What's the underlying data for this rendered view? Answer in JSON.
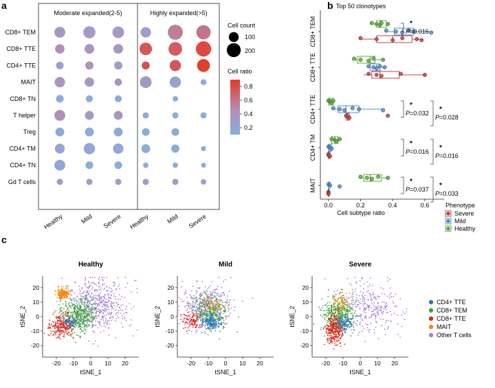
{
  "panels": {
    "a": "a",
    "b": "b",
    "c": "c"
  },
  "colors": {
    "severe": "#c8413b",
    "mild": "#4a90d9",
    "healthy": "#59b02f",
    "ratio_low": "#88aee0",
    "ratio_mid": "#b28fb8",
    "ratio_high": "#e63a26",
    "cd4_tte": "#2b7bb9",
    "cd8_tem": "#3ca33a",
    "cd8_tte": "#e0261c",
    "mait": "#f08a0c",
    "other_t": "#a97de0"
  },
  "chart_data": [
    {
      "type": "scatter",
      "subtype": "dot-plot",
      "panel": "a",
      "group_titles": [
        "Moderate expanded(2-5)",
        "Highly expanded(>5)"
      ],
      "categories": [
        "Healthy",
        "Mild",
        "Severe",
        "Healthy",
        "Mild",
        "Severe"
      ],
      "rows": [
        "CD8+ TEM",
        "CD8+ TTE",
        "CD4+ TTE",
        "MAIT",
        "CD8+ TN",
        "T helper",
        "Treg",
        "CD4+ TM",
        "CD4+ TN",
        "Gd T cells"
      ],
      "cell_count": [
        [
          120,
          150,
          140,
          110,
          230,
          210
        ],
        [
          90,
          95,
          95,
          160,
          190,
          240
        ],
        [
          60,
          70,
          70,
          65,
          130,
          170
        ],
        [
          110,
          90,
          55,
          140,
          130,
          35
        ],
        [
          60,
          50,
          50,
          0,
          30,
          0
        ],
        [
          120,
          80,
          80,
          40,
          40,
          40
        ],
        [
          80,
          80,
          80,
          60,
          60,
          0
        ],
        [
          100,
          130,
          110,
          80,
          70,
          25
        ],
        [
          120,
          60,
          60,
          30,
          30,
          25
        ],
        [
          40,
          40,
          40,
          40,
          40,
          30
        ]
      ],
      "cell_ratio": [
        [
          0.35,
          0.33,
          0.33,
          0.28,
          0.55,
          0.6
        ],
        [
          0.45,
          0.4,
          0.38,
          0.75,
          0.72,
          0.82
        ],
        [
          0.3,
          0.4,
          0.28,
          0.8,
          0.75,
          0.88
        ],
        [
          0.4,
          0.35,
          0.4,
          0.35,
          0.22,
          0.12
        ],
        [
          0.12,
          0.12,
          0.12,
          0,
          0.12,
          0
        ],
        [
          0.45,
          0.35,
          0.4,
          0.12,
          0.12,
          0.12
        ],
        [
          0.15,
          0.15,
          0.15,
          0.12,
          0.12,
          0
        ],
        [
          0.2,
          0.18,
          0.18,
          0.12,
          0.12,
          0.12
        ],
        [
          0.18,
          0.12,
          0.12,
          0.12,
          0.12,
          0.12
        ],
        [
          0.3,
          0.3,
          0.3,
          0.25,
          0.35,
          0.25
        ]
      ],
      "size_legend": {
        "title": "Cell count",
        "labels": [
          "100",
          "200"
        ],
        "values": [
          100,
          200
        ]
      },
      "color_legend": {
        "title": "Cell ratio",
        "ticks": [
          "0.8",
          "0.6",
          "0.4",
          "0.2"
        ],
        "values": [
          0.8,
          0.6,
          0.4,
          0.2
        ],
        "range": [
          0.1,
          0.9
        ]
      }
    },
    {
      "type": "box",
      "panel": "b",
      "title": "Top 50 clonotypes",
      "xlabel": "Cell subtype ratio",
      "xlim": [
        -0.05,
        0.72
      ],
      "xticks": [
        0.0,
        0.2,
        0.4,
        0.6
      ],
      "xtick_labels": [
        "0.0",
        "0.2",
        "0.4",
        "0.6"
      ],
      "categories": [
        "CD8+ TEM",
        "CD8+ TTE",
        "CD4+ TTE",
        "CD4+ TM",
        "MAIT"
      ],
      "series_order": [
        "Healthy",
        "Mild",
        "Severe"
      ],
      "boxes": [
        {
          "category": "CD8+ TEM",
          "series": "Healthy",
          "q1": 0.3,
          "median": 0.32,
          "q3": 0.36,
          "wmin": 0.26,
          "wmax": 0.38,
          "points": [
            0.27,
            0.3,
            0.32,
            0.33,
            0.37
          ]
        },
        {
          "category": "CD8+ TEM",
          "series": "Mild",
          "q1": 0.41,
          "median": 0.46,
          "q3": 0.53,
          "wmin": 0.35,
          "wmax": 0.65,
          "points": [
            0.36,
            0.42,
            0.46,
            0.5,
            0.53,
            0.64
          ]
        },
        {
          "category": "CD8+ TEM",
          "series": "Severe",
          "q1": 0.3,
          "median": 0.4,
          "q3": 0.52,
          "wmin": 0.19,
          "wmax": 0.59,
          "points": [
            0.2,
            0.3,
            0.4,
            0.46,
            0.55,
            0.58
          ]
        },
        {
          "category": "CD8+ TTE",
          "series": "Healthy",
          "q1": 0.18,
          "median": 0.26,
          "q3": 0.29,
          "wmin": 0.15,
          "wmax": 0.35,
          "points": [
            0.16,
            0.2,
            0.25,
            0.28,
            0.34
          ]
        },
        {
          "category": "CD8+ TTE",
          "series": "Mild",
          "q1": 0.26,
          "median": 0.3,
          "q3": 0.32,
          "wmin": 0.24,
          "wmax": 0.36,
          "points": [
            0.25,
            0.28,
            0.3,
            0.32,
            0.35
          ]
        },
        {
          "category": "CD8+ TTE",
          "series": "Severe",
          "q1": 0.27,
          "median": 0.32,
          "q3": 0.44,
          "wmin": 0.22,
          "wmax": 0.61,
          "points": [
            0.25,
            0.3,
            0.33,
            0.45,
            0.6
          ]
        },
        {
          "category": "CD4+ TTE",
          "series": "Healthy",
          "q1": 0.0,
          "median": 0.01,
          "q3": 0.03,
          "wmin": 0.0,
          "wmax": 0.04,
          "points": [
            0.0,
            0.01,
            0.02,
            0.03
          ]
        },
        {
          "category": "CD4+ TTE",
          "series": "Mild",
          "q1": 0.06,
          "median": 0.11,
          "q3": 0.19,
          "wmin": 0.02,
          "wmax": 0.35,
          "points": [
            0.03,
            0.07,
            0.1,
            0.15,
            0.19,
            0.34
          ]
        },
        {
          "category": "CD4+ TTE",
          "series": "Severe",
          "q1": 0.11,
          "median": 0.12,
          "q3": 0.13,
          "wmin": 0.1,
          "wmax": 0.14,
          "points": [
            0.11,
            0.12,
            0.13,
            0.37
          ]
        },
        {
          "category": "CD4+ TM",
          "series": "Healthy",
          "q1": 0.02,
          "median": 0.04,
          "q3": 0.06,
          "wmin": 0.01,
          "wmax": 0.08,
          "points": [
            0.02,
            0.04,
            0.05,
            0.07
          ]
        },
        {
          "category": "CD4+ TM",
          "series": "Mild",
          "q1": 0.0,
          "median": 0.01,
          "q3": 0.02,
          "wmin": 0.0,
          "wmax": 0.03,
          "points": [
            0.0,
            0.01,
            0.02
          ]
        },
        {
          "category": "CD4+ TM",
          "series": "Severe",
          "q1": 0.0,
          "median": 0.0,
          "q3": 0.01,
          "wmin": 0.0,
          "wmax": 0.01,
          "points": [
            0.0,
            0.0,
            0.01
          ]
        },
        {
          "category": "MAIT",
          "series": "Healthy",
          "q1": 0.22,
          "median": 0.26,
          "q3": 0.33,
          "wmin": 0.19,
          "wmax": 0.38,
          "points": [
            0.2,
            0.24,
            0.27,
            0.31,
            0.37
          ]
        },
        {
          "category": "MAIT",
          "series": "Mild",
          "q1": 0.0,
          "median": 0.0,
          "q3": 0.01,
          "wmin": 0.0,
          "wmax": 0.02,
          "points": [
            0.0,
            0.01,
            0.07
          ]
        },
        {
          "category": "MAIT",
          "series": "Severe",
          "q1": 0.0,
          "median": 0.0,
          "q3": 0.0,
          "wmin": 0.0,
          "wmax": 0.0,
          "points": [
            0.0,
            0.0,
            0.0
          ]
        }
      ],
      "annotations": [
        {
          "category": "CD8+ TEM",
          "star": "*",
          "p": "=0.016",
          "type": "single"
        },
        {
          "category": "CD4+ TTE",
          "star": "*",
          "p": "=0.032",
          "type": "inner"
        },
        {
          "category": "CD4+ TTE",
          "star": "*",
          "p": "=0.028",
          "type": "outer"
        },
        {
          "category": "CD4+ TM",
          "star": "*",
          "p": "=0.016",
          "type": "inner"
        },
        {
          "category": "CD4+ TM",
          "star": "*",
          "p": "=0.016",
          "type": "outer"
        },
        {
          "category": "MAIT",
          "star": "*",
          "p": "=0.037",
          "type": "inner"
        },
        {
          "category": "MAIT",
          "star": "*",
          "p": "=0.033",
          "type": "outer"
        }
      ],
      "p_symbol": "P",
      "legend": {
        "title": "Phenotype",
        "entries": [
          "Severe",
          "Mild",
          "Healthy"
        ]
      }
    },
    {
      "type": "scatter",
      "subtype": "tsne",
      "panel": "c",
      "xlabel": "tSNE_1",
      "ylabel": "tSNE_2",
      "xlim": [
        -28,
        28
      ],
      "ylim": [
        -28,
        28
      ],
      "xticks": [
        -20,
        -10,
        0,
        10,
        20
      ],
      "yticks": [
        -20,
        -10,
        0,
        10,
        20
      ],
      "tick_labels": [
        "-20",
        "-10",
        "0",
        "10",
        "20"
      ],
      "subplots": [
        {
          "title": "Healthy",
          "clusters": [
            {
              "type": "Other T cells",
              "cx": 4,
              "cy": 8,
              "sx": 9,
              "sy": 9,
              "n": 520
            },
            {
              "type": "CD8+ TEM",
              "cx": -7,
              "cy": 1,
              "sx": 5,
              "sy": 6,
              "n": 420
            },
            {
              "type": "CD8+ TTE",
              "cx": -17,
              "cy": -7,
              "sx": 3.5,
              "sy": 4,
              "n": 230
            },
            {
              "type": "MAIT",
              "cx": -16,
              "cy": 16,
              "sx": 1.8,
              "sy": 1.8,
              "n": 180
            },
            {
              "type": "CD4+ TTE",
              "cx": -12,
              "cy": -4,
              "sx": 2.5,
              "sy": 2.5,
              "n": 70
            }
          ]
        },
        {
          "title": "Mild",
          "clusters": [
            {
              "type": "Other T cells",
              "cx": -11,
              "cy": 7,
              "sx": 7,
              "sy": 7,
              "n": 420
            },
            {
              "type": "CD8+ TEM",
              "cx": -9,
              "cy": 3,
              "sx": 5,
              "sy": 6,
              "n": 300
            },
            {
              "type": "CD8+ TTE",
              "cx": -19,
              "cy": -3,
              "sx": 3,
              "sy": 3,
              "n": 90
            },
            {
              "type": "MAIT",
              "cx": -7,
              "cy": 8,
              "sx": 3,
              "sy": 2.5,
              "n": 50
            },
            {
              "type": "CD4+ TTE",
              "cx": -8,
              "cy": -4,
              "sx": 2.5,
              "sy": 2.5,
              "n": 170
            }
          ]
        },
        {
          "title": "Severe",
          "clusters": [
            {
              "type": "Other T cells",
              "cx": 4,
              "cy": 6,
              "sx": 9,
              "sy": 8,
              "n": 320
            },
            {
              "type": "CD8+ TEM",
              "cx": -13,
              "cy": 2,
              "sx": 4.5,
              "sy": 6,
              "n": 380
            },
            {
              "type": "CD8+ TTE",
              "cx": -15,
              "cy": -9,
              "sx": 2.5,
              "sy": 5,
              "n": 300
            },
            {
              "type": "MAIT",
              "cx": -11,
              "cy": 10,
              "sx": 2,
              "sy": 3,
              "n": 60
            },
            {
              "type": "CD4+ TTE",
              "cx": -9,
              "cy": -5,
              "sx": 2.5,
              "sy": 2.5,
              "n": 110
            }
          ]
        }
      ],
      "legend": {
        "entries": [
          "CD4+ TTE",
          "CD8+ TEM",
          "CD8+ TTE",
          "MAIT",
          "Other T cells"
        ]
      }
    }
  ]
}
